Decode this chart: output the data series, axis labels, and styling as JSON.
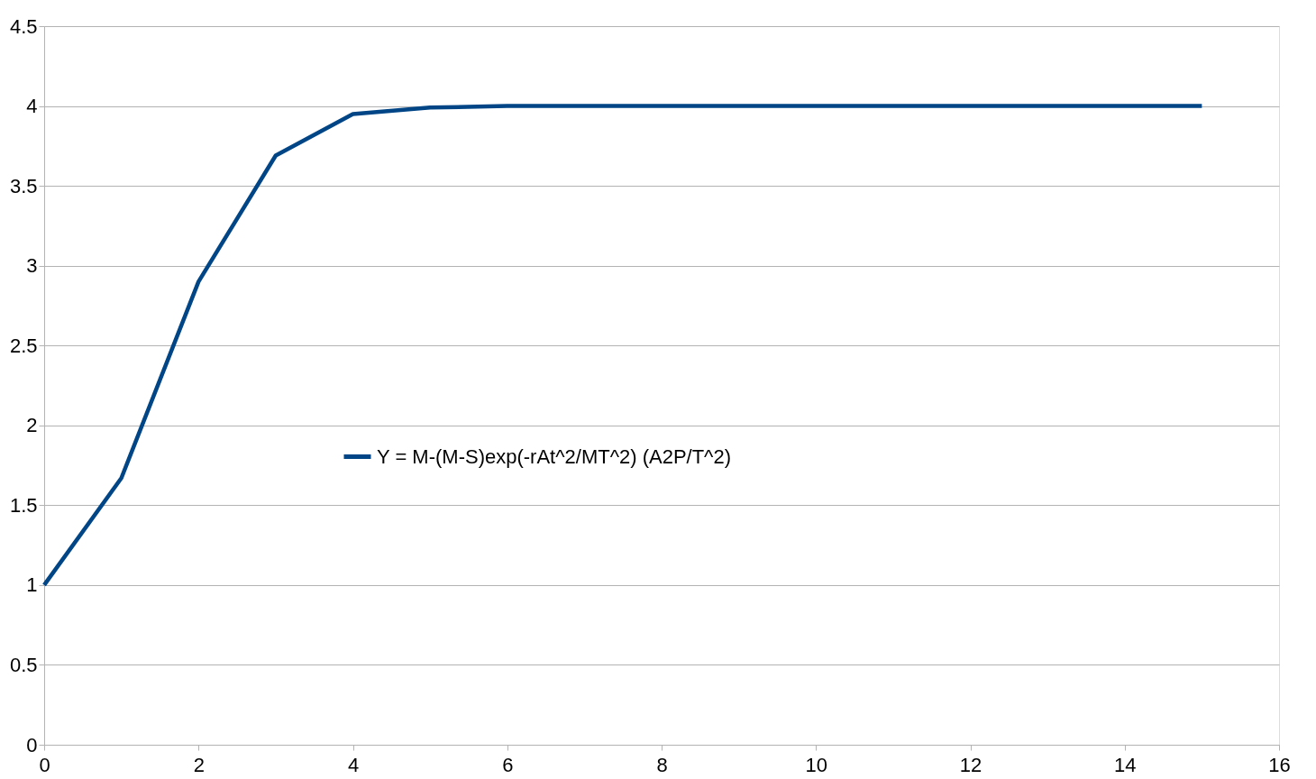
{
  "chart_data": {
    "type": "line",
    "x": [
      0,
      1,
      2,
      3,
      4,
      5,
      6,
      7,
      8,
      9,
      10,
      11,
      12,
      13,
      14,
      15
    ],
    "series": [
      {
        "name": "Y = M-(M-S)exp(-rAt^2/MT^2) (A2P/T^2)",
        "color": "#004586",
        "values": [
          1,
          1.67,
          2.9,
          3.69,
          3.95,
          3.99,
          4,
          4,
          4,
          4,
          4,
          4,
          4,
          4,
          4,
          4
        ]
      }
    ],
    "xlim": [
      0,
      16
    ],
    "xticks": [
      0,
      2,
      4,
      6,
      8,
      10,
      12,
      14,
      16
    ],
    "ylim": [
      0,
      4.5
    ],
    "yticks": [
      0,
      0.5,
      1,
      1.5,
      2,
      2.5,
      3,
      3.5,
      4,
      4.5
    ],
    "grid": "y",
    "legend": "left",
    "marker": "none",
    "line_style": "solid"
  }
}
